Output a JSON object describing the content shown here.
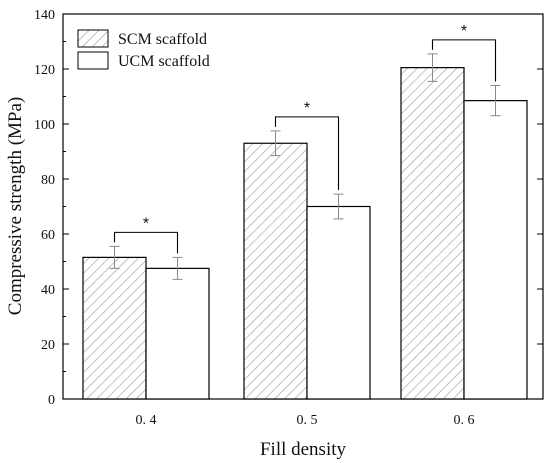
{
  "chart_data": {
    "type": "bar",
    "title": "",
    "xlabel": "Fill density",
    "ylabel": "Compressive strength (MPa)",
    "categories": [
      "0. 4",
      "0. 5",
      "0. 6"
    ],
    "ylim": [
      0,
      140
    ],
    "yticks": [
      0,
      20,
      40,
      60,
      80,
      100,
      120,
      140
    ],
    "grid": false,
    "legend_position": "top-left",
    "series": [
      {
        "name": "SCM scaffold",
        "values": [
          51.5,
          93,
          120.5
        ],
        "errors": [
          4,
          4.5,
          5
        ],
        "fill": "hatched",
        "color": "#bfbfbf"
      },
      {
        "name": "UCM scaffold",
        "values": [
          47.5,
          70,
          108.5
        ],
        "errors": [
          4,
          4.5,
          5.5
        ],
        "fill": "solid",
        "color": "#ffffff"
      }
    ],
    "significance": [
      {
        "label": "*",
        "category": "0. 4"
      },
      {
        "label": "*",
        "category": "0. 5"
      },
      {
        "label": "*",
        "category": "0. 6"
      }
    ]
  }
}
